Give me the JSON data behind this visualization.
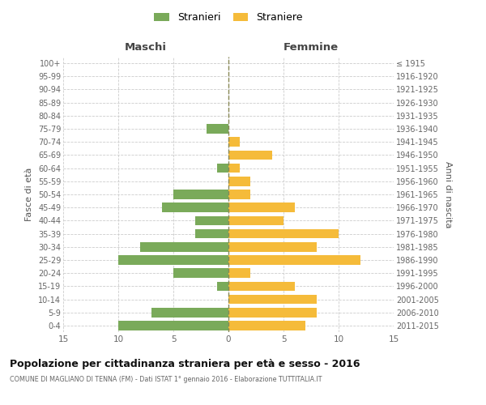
{
  "age_groups": [
    "0-4",
    "5-9",
    "10-14",
    "15-19",
    "20-24",
    "25-29",
    "30-34",
    "35-39",
    "40-44",
    "45-49",
    "50-54",
    "55-59",
    "60-64",
    "65-69",
    "70-74",
    "75-79",
    "80-84",
    "85-89",
    "90-94",
    "95-99",
    "100+"
  ],
  "birth_years": [
    "2011-2015",
    "2006-2010",
    "2001-2005",
    "1996-2000",
    "1991-1995",
    "1986-1990",
    "1981-1985",
    "1976-1980",
    "1971-1975",
    "1966-1970",
    "1961-1965",
    "1956-1960",
    "1951-1955",
    "1946-1950",
    "1941-1945",
    "1936-1940",
    "1931-1935",
    "1926-1930",
    "1921-1925",
    "1916-1920",
    "≤ 1915"
  ],
  "males": [
    10,
    7,
    0,
    1,
    5,
    10,
    8,
    3,
    3,
    6,
    5,
    0,
    1,
    0,
    0,
    2,
    0,
    0,
    0,
    0,
    0
  ],
  "females": [
    7,
    8,
    8,
    6,
    2,
    12,
    8,
    10,
    5,
    6,
    2,
    2,
    1,
    4,
    1,
    0,
    0,
    0,
    0,
    0,
    0
  ],
  "male_color": "#7aaa5a",
  "female_color": "#f5bb3a",
  "center_line_color": "#888855",
  "grid_color": "#cccccc",
  "xlim": 15,
  "title": "Popolazione per cittadinanza straniera per età e sesso - 2016",
  "subtitle": "COMUNE DI MAGLIANO DI TENNA (FM) - Dati ISTAT 1° gennaio 2016 - Elaborazione TUTTITALIA.IT",
  "xlabel_left": "Maschi",
  "xlabel_right": "Femmine",
  "ylabel_left": "Fasce di età",
  "ylabel_right": "Anni di nascita",
  "legend_male": "Stranieri",
  "legend_female": "Straniere",
  "background_color": "#ffffff"
}
